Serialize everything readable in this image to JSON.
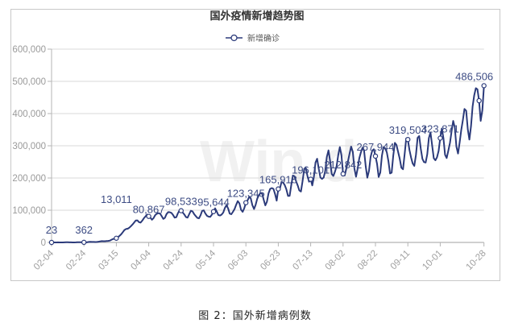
{
  "caption": "图 2：国外新增病例数",
  "watermark": "Win.d",
  "colors": {
    "line": "#2b3a7a",
    "grid": "#d9d9d9",
    "axis": "#b5b5b5",
    "label": "#3d4c84",
    "frame": "#c8c8c8"
  },
  "chart_data": {
    "type": "line",
    "title": "国外疫情新增趋势图",
    "xlabel": "",
    "ylabel": "",
    "ylim": [
      0,
      600000
    ],
    "yticks": [
      0,
      100000,
      200000,
      300000,
      400000,
      500000,
      600000
    ],
    "ytick_labels": [
      "0",
      "100,000",
      "200,000",
      "300,000",
      "400,000",
      "500,000",
      "600,000"
    ],
    "grid": true,
    "legend_position": "top",
    "x_tick_labels": [
      "02-04",
      "02-24",
      "03-15",
      "04-04",
      "04-24",
      "05-14",
      "06-03",
      "06-23",
      "07-13",
      "08-02",
      "08-22",
      "09-11",
      "10-01",
      "10-28"
    ],
    "x_tick_days": [
      0,
      20,
      40,
      60,
      80,
      100,
      120,
      140,
      160,
      180,
      200,
      220,
      240,
      267
    ],
    "series": [
      {
        "name": "新增确诊",
        "labeled_points": [
          {
            "date": "02-04",
            "day": 0,
            "value": 23,
            "label": "23"
          },
          {
            "date": "02-24",
            "day": 20,
            "value": 362,
            "label": "362"
          },
          {
            "date": "03-15",
            "day": 40,
            "value": 13011,
            "label": "13,011"
          },
          {
            "date": "04-04",
            "day": 60,
            "value": 80867,
            "label": "80,867"
          },
          {
            "date": "04-24",
            "day": 80,
            "value": 98533,
            "label": "98,533"
          },
          {
            "date": "05-14",
            "day": 100,
            "value": 95644,
            "label": "95,644"
          },
          {
            "date": "06-03",
            "day": 120,
            "value": 123345,
            "label": "123,345"
          },
          {
            "date": "06-23",
            "day": 140,
            "value": 165918,
            "label": "165,918"
          },
          {
            "date": "07-13",
            "day": 160,
            "value": 196101,
            "label": "196,101"
          },
          {
            "date": "08-02",
            "day": 180,
            "value": 212842,
            "label": "212,842"
          },
          {
            "date": "08-22",
            "day": 200,
            "value": 267944,
            "label": "267,944"
          },
          {
            "date": "09-11",
            "day": 220,
            "value": 319504,
            "label": "319,504"
          },
          {
            "date": "10-01",
            "day": 240,
            "value": 323871,
            "label": "323,871"
          },
          {
            "date": "10-28",
            "day": 267,
            "value": 486506,
            "label": "486,506"
          }
        ],
        "extra_markers": [
          {
            "day": 264,
            "value": 440000
          }
        ],
        "trend_anchors": [
          [
            0,
            0
          ],
          [
            20,
            400
          ],
          [
            30,
            2500
          ],
          [
            36,
            6000
          ],
          [
            40,
            13011
          ],
          [
            44,
            30000
          ],
          [
            48,
            50000
          ],
          [
            52,
            62000
          ],
          [
            56,
            72000
          ],
          [
            60,
            80867
          ],
          [
            70,
            85000
          ],
          [
            80,
            90000
          ],
          [
            90,
            85000
          ],
          [
            100,
            90000
          ],
          [
            110,
            100000
          ],
          [
            120,
            118000
          ],
          [
            130,
            138000
          ],
          [
            140,
            160000
          ],
          [
            150,
            180000
          ],
          [
            160,
            205000
          ],
          [
            170,
            235000
          ],
          [
            180,
            250000
          ],
          [
            190,
            255000
          ],
          [
            200,
            255000
          ],
          [
            210,
            262000
          ],
          [
            220,
            278000
          ],
          [
            230,
            282000
          ],
          [
            240,
            295000
          ],
          [
            248,
            320000
          ],
          [
            254,
            350000
          ],
          [
            258,
            390000
          ],
          [
            262,
            430000
          ],
          [
            265,
            450000
          ],
          [
            267,
            470000
          ]
        ],
        "weekly_amplitude_anchors": [
          [
            0,
            0
          ],
          [
            40,
            1000
          ],
          [
            60,
            9000
          ],
          [
            100,
            12000
          ],
          [
            140,
            25000
          ],
          [
            170,
            40000
          ],
          [
            200,
            45000
          ],
          [
            240,
            45000
          ],
          [
            260,
            60000
          ],
          [
            267,
            60000
          ]
        ]
      }
    ]
  }
}
